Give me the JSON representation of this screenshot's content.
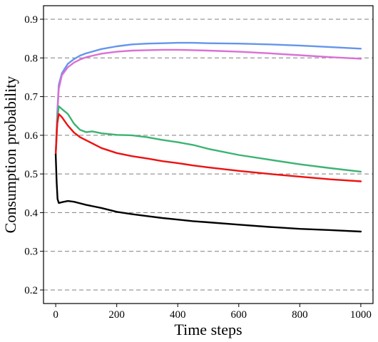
{
  "chart_data": {
    "type": "line",
    "xlabel": "Time steps",
    "ylabel": "Consumption probability",
    "xlim": [
      -40,
      1040
    ],
    "ylim": [
      0.165,
      0.935
    ],
    "xticks": [
      0,
      200,
      400,
      600,
      800,
      1000
    ],
    "yticks": [
      0.2,
      0.3,
      0.4,
      0.5,
      0.6,
      0.7,
      0.8,
      0.9
    ],
    "xtick_labels": [
      "0",
      "200",
      "400",
      "600",
      "800",
      "1000"
    ],
    "ytick_labels": [
      "0.2",
      "0.3",
      "0.4",
      "0.5",
      "0.6",
      "0.7",
      "0.8",
      "0.9"
    ],
    "grid": "horizontal dashed",
    "legend": "none",
    "series": [
      {
        "color": "#6495ED",
        "x": [
          0,
          5,
          10,
          20,
          40,
          60,
          80,
          100,
          150,
          200,
          250,
          300,
          350,
          400,
          450,
          500,
          600,
          700,
          800,
          900,
          1000
        ],
        "y": [
          0.55,
          0.66,
          0.73,
          0.76,
          0.785,
          0.797,
          0.806,
          0.812,
          0.823,
          0.83,
          0.835,
          0.837,
          0.838,
          0.839,
          0.839,
          0.838,
          0.837,
          0.835,
          0.832,
          0.828,
          0.824
        ]
      },
      {
        "color": "#DA70D6",
        "x": [
          0,
          5,
          10,
          20,
          40,
          60,
          80,
          100,
          150,
          200,
          250,
          300,
          350,
          400,
          450,
          500,
          600,
          700,
          800,
          900,
          1000
        ],
        "y": [
          0.55,
          0.65,
          0.72,
          0.755,
          0.776,
          0.788,
          0.796,
          0.802,
          0.811,
          0.816,
          0.819,
          0.82,
          0.821,
          0.821,
          0.82,
          0.819,
          0.816,
          0.812,
          0.807,
          0.802,
          0.798
        ]
      },
      {
        "color": "#3CB371",
        "x": [
          0,
          5,
          10,
          20,
          40,
          60,
          80,
          100,
          120,
          150,
          200,
          250,
          300,
          350,
          400,
          450,
          500,
          600,
          700,
          800,
          900,
          1000
        ],
        "y": [
          0.55,
          0.64,
          0.675,
          0.668,
          0.655,
          0.63,
          0.614,
          0.608,
          0.61,
          0.605,
          0.601,
          0.6,
          0.595,
          0.588,
          0.582,
          0.575,
          0.565,
          0.549,
          0.537,
          0.525,
          0.515,
          0.506
        ]
      },
      {
        "color": "#EE1111",
        "x": [
          0,
          5,
          10,
          20,
          40,
          60,
          80,
          100,
          150,
          200,
          250,
          300,
          350,
          400,
          450,
          500,
          600,
          700,
          800,
          900,
          1000
        ],
        "y": [
          0.55,
          0.63,
          0.655,
          0.647,
          0.625,
          0.607,
          0.595,
          0.587,
          0.567,
          0.554,
          0.546,
          0.54,
          0.533,
          0.528,
          0.522,
          0.517,
          0.508,
          0.5,
          0.493,
          0.486,
          0.481
        ]
      },
      {
        "color": "#000000",
        "x": [
          0,
          3,
          6,
          10,
          20,
          40,
          60,
          80,
          100,
          150,
          200,
          250,
          300,
          350,
          400,
          450,
          500,
          600,
          700,
          800,
          900,
          1000
        ],
        "y": [
          0.55,
          0.48,
          0.435,
          0.425,
          0.427,
          0.43,
          0.428,
          0.424,
          0.42,
          0.412,
          0.402,
          0.396,
          0.391,
          0.386,
          0.382,
          0.378,
          0.375,
          0.369,
          0.363,
          0.358,
          0.355,
          0.351
        ]
      }
    ]
  }
}
